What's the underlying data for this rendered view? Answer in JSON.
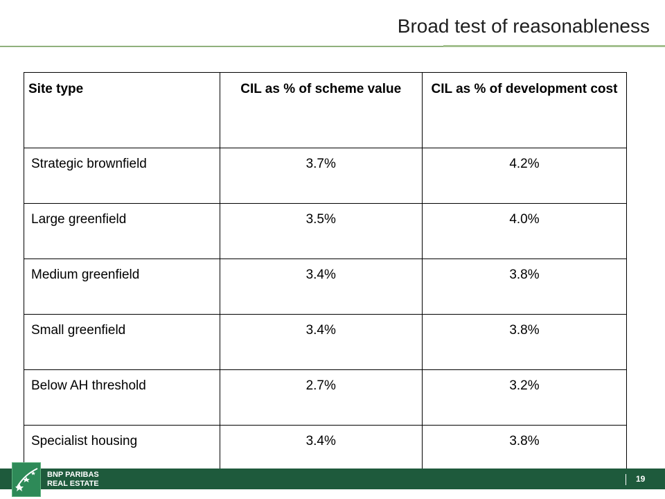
{
  "slide": {
    "title": "Broad test of reasonableness",
    "page_number": "19"
  },
  "table": {
    "headers": [
      "Site type",
      "CIL as % of scheme value",
      "CIL as % of development cost"
    ],
    "rows": [
      [
        "Strategic brownfield",
        "3.7%",
        "4.2%"
      ],
      [
        "Large greenfield",
        "3.5%",
        "4.0%"
      ],
      [
        "Medium greenfield",
        "3.4%",
        "3.8%"
      ],
      [
        "Small greenfield",
        "3.4%",
        "3.8%"
      ],
      [
        "Below AH threshold",
        "2.7%",
        "3.2%"
      ],
      [
        "Specialist housing",
        "3.4%",
        "3.8%"
      ]
    ]
  },
  "footer": {
    "logo_line1": "BNP PARIBAS",
    "logo_line2": "REAL ESTATE",
    "logo_icon": "bnp-stars-logo-icon"
  },
  "colors": {
    "footer_bar": "#1e5a3c",
    "title_rule": "#8fb07c",
    "logo_green": "#2e8a58"
  }
}
